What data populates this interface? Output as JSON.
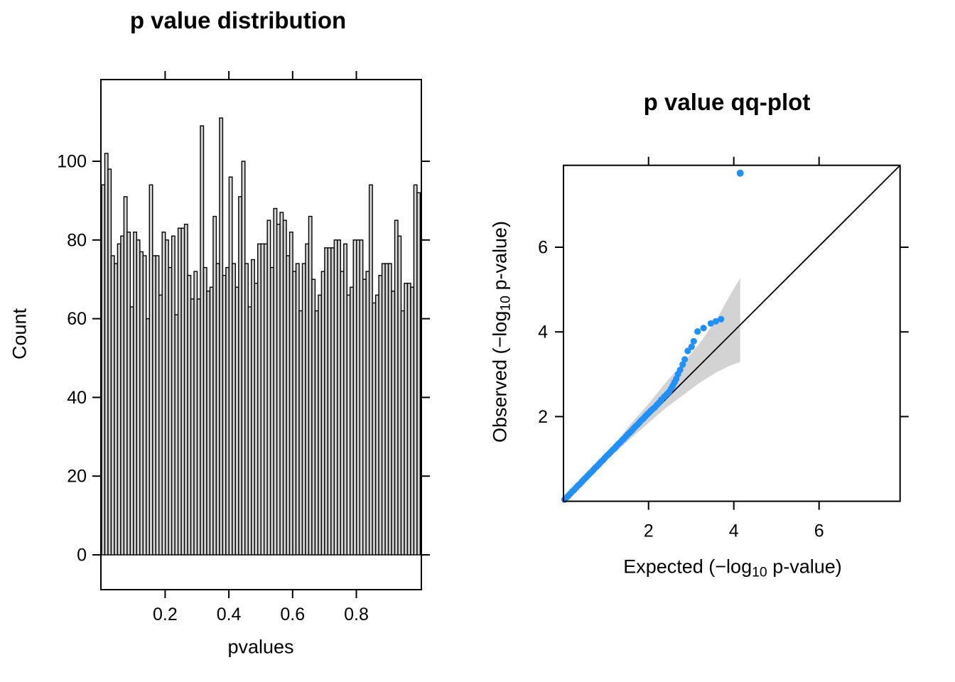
{
  "page": {
    "background": "#ffffff",
    "text_color": "#000000"
  },
  "labels": {
    "hist_ylabel": "Count",
    "hist_xlabel": "pvalues",
    "qq_xlabel_prefix": "Expected (−log",
    "qq_xlabel_sub": "10",
    "qq_xlabel_suffix": " p-value)",
    "qq_ylabel_prefix": "Observed (−log",
    "qq_ylabel_sub": "10",
    "qq_ylabel_suffix": " p-value)"
  },
  "chart_data": [
    {
      "type": "bar",
      "title": "p value distribution",
      "xlabel": "pvalues",
      "ylabel": "Count",
      "bin_start": 0.0,
      "bin_width": 0.01,
      "xlim": [
        0,
        1
      ],
      "ylim": [
        0,
        120
      ],
      "x_ticks": [
        0.2,
        0.4,
        0.6,
        0.8
      ],
      "y_ticks": [
        0,
        20,
        40,
        60,
        80,
        100
      ],
      "grid": false,
      "bar_fill": "#d3d3d3",
      "bar_stroke": "#000000",
      "counts": [
        94,
        102,
        98,
        76,
        74,
        79,
        81,
        91,
        82,
        63,
        82,
        80,
        77,
        76,
        60,
        94,
        76,
        76,
        66,
        82,
        80,
        73,
        81,
        61,
        83,
        83,
        84,
        71,
        65,
        72,
        65,
        109,
        73,
        67,
        68,
        86,
        74,
        111,
        71,
        73,
        96,
        74,
        68,
        91,
        100,
        74,
        63,
        75,
        69,
        79,
        79,
        79,
        85,
        73,
        88,
        84,
        87,
        85,
        76,
        82,
        72,
        74,
        62,
        74,
        79,
        86,
        70,
        62,
        66,
        72,
        78,
        78,
        78,
        80,
        80,
        72,
        79,
        66,
        68,
        80,
        80,
        80,
        70,
        72,
        94,
        64,
        66,
        71,
        74,
        74,
        74,
        67,
        85,
        81,
        62,
        69,
        69,
        68,
        94,
        92
      ]
    },
    {
      "type": "scatter",
      "title": "p value qq-plot",
      "xlabel": "Expected (−log10 p-value)",
      "ylabel": "Observed (−log10 p-value)",
      "xlim": [
        0,
        7.9
      ],
      "ylim": [
        0,
        7.93
      ],
      "x_ticks": [
        2,
        4,
        6
      ],
      "y_ticks": [
        2,
        4,
        6
      ],
      "grid": false,
      "identity_line": true,
      "point_color": "#1e90ff",
      "band_color": "#d3d3d3",
      "points": [
        [
          0.03,
          0.04
        ],
        [
          0.075,
          0.09
        ],
        [
          0.12,
          0.13
        ],
        [
          0.165,
          0.18
        ],
        [
          0.21,
          0.23
        ],
        [
          0.255,
          0.27
        ],
        [
          0.3,
          0.32
        ],
        [
          0.345,
          0.37
        ],
        [
          0.39,
          0.41
        ],
        [
          0.435,
          0.46
        ],
        [
          0.48,
          0.51
        ],
        [
          0.525,
          0.55
        ],
        [
          0.57,
          0.6
        ],
        [
          0.615,
          0.65
        ],
        [
          0.66,
          0.69
        ],
        [
          0.705,
          0.74
        ],
        [
          0.75,
          0.79
        ],
        [
          0.795,
          0.83
        ],
        [
          0.84,
          0.88
        ],
        [
          0.885,
          0.93
        ],
        [
          0.93,
          0.97
        ],
        [
          0.975,
          1.02
        ],
        [
          1.02,
          1.07
        ],
        [
          1.065,
          1.11
        ],
        [
          1.11,
          1.16
        ],
        [
          1.155,
          1.21
        ],
        [
          1.2,
          1.25
        ],
        [
          1.245,
          1.3
        ],
        [
          1.29,
          1.35
        ],
        [
          1.335,
          1.39
        ],
        [
          1.38,
          1.44
        ],
        [
          1.425,
          1.48
        ],
        [
          1.47,
          1.53
        ],
        [
          1.515,
          1.58
        ],
        [
          1.56,
          1.62
        ],
        [
          1.605,
          1.67
        ],
        [
          1.65,
          1.72
        ],
        [
          1.695,
          1.77
        ],
        [
          1.74,
          1.81
        ],
        [
          1.785,
          1.86
        ],
        [
          1.83,
          1.91
        ],
        [
          1.875,
          1.95
        ],
        [
          1.92,
          2.0
        ],
        [
          1.965,
          2.05
        ],
        [
          2.01,
          2.09
        ],
        [
          2.055,
          2.14
        ],
        [
          2.1,
          2.18
        ],
        [
          2.15,
          2.22
        ],
        [
          2.2,
          2.28
        ],
        [
          2.25,
          2.33
        ],
        [
          2.3,
          2.4
        ],
        [
          2.37,
          2.47
        ],
        [
          2.43,
          2.53
        ],
        [
          2.48,
          2.58
        ],
        [
          2.53,
          2.66
        ],
        [
          2.57,
          2.73
        ],
        [
          2.61,
          2.81
        ],
        [
          2.65,
          2.89
        ],
        [
          2.69,
          3.0
        ],
        [
          2.74,
          3.1
        ],
        [
          2.8,
          3.23
        ],
        [
          2.85,
          3.35
        ],
        [
          2.92,
          3.55
        ],
        [
          3.01,
          3.65
        ],
        [
          3.06,
          3.78
        ],
        [
          3.15,
          4.01
        ],
        [
          3.29,
          4.09
        ],
        [
          3.46,
          4.2
        ],
        [
          3.58,
          4.25
        ],
        [
          3.7,
          4.3
        ]
      ],
      "outlier": [
        4.15,
        7.75
      ],
      "band": {
        "lower": [
          [
            1.2,
            1.13
          ],
          [
            1.6,
            1.5
          ],
          [
            2.0,
            1.85
          ],
          [
            2.4,
            2.2
          ],
          [
            2.8,
            2.5
          ],
          [
            3.2,
            2.8
          ],
          [
            3.6,
            3.05
          ],
          [
            3.9,
            3.2
          ],
          [
            4.15,
            3.29
          ]
        ],
        "upper": [
          [
            1.2,
            1.33
          ],
          [
            1.6,
            1.85
          ],
          [
            2.0,
            2.3
          ],
          [
            2.4,
            2.8
          ],
          [
            2.8,
            3.25
          ],
          [
            3.2,
            3.73
          ],
          [
            3.6,
            4.3
          ],
          [
            3.9,
            4.85
          ],
          [
            4.15,
            5.27
          ]
        ]
      }
    }
  ]
}
